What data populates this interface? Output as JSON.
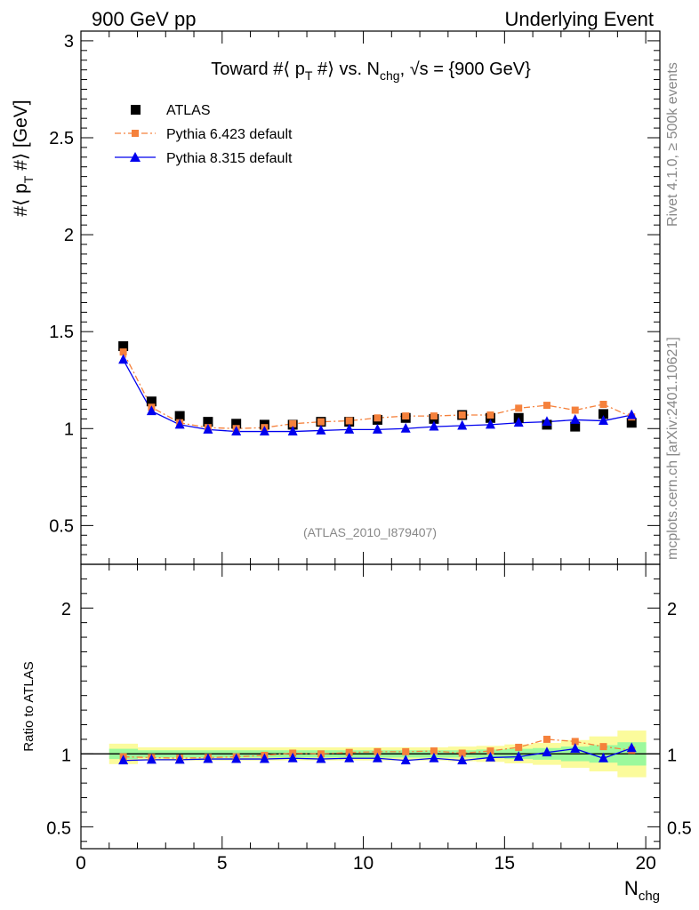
{
  "header": {
    "left": "900 GeV pp",
    "right": "Underlying Event"
  },
  "side": {
    "rivet": "Rivet 4.1.0, ≥ 500k events",
    "mcplots": "mcplots.cern.ch [arXiv:2401.10621]"
  },
  "colors": {
    "atlas": "#000000",
    "pythia6": "#f5813c",
    "pythia8": "#0000ee",
    "band_inner": "#9cf99c",
    "band_outer": "#fbfb9c"
  },
  "chart_data": [
    {
      "type": "scatter",
      "title_parts": [
        "Toward #⟨ p",
        "T",
        " #⟩ vs. N",
        "chg",
        ", √s = {900 GeV}"
      ],
      "ylabel_parts": [
        "#⟨ p",
        "T",
        " #⟩ [GeV]"
      ],
      "analysis_label": "(ATLAS_2010_I879407)",
      "xlim": [
        0,
        20.5
      ],
      "ylim": [
        0.3,
        3.05
      ],
      "yticks": [
        0.5,
        1,
        1.5,
        2,
        2.5,
        3
      ],
      "ytick_labels": [
        "0.5",
        "1",
        "1.5",
        "2",
        "2.5",
        "3"
      ],
      "x": [
        1.5,
        2.5,
        3.5,
        4.5,
        5.5,
        6.5,
        7.5,
        8.5,
        9.5,
        10.5,
        11.5,
        12.5,
        13.5,
        14.5,
        15.5,
        16.5,
        17.5,
        18.5,
        19.5
      ],
      "series": [
        {
          "name": "ATLAS",
          "style": "data",
          "values": [
            1.425,
            1.14,
            1.065,
            1.035,
            1.025,
            1.02,
            1.02,
            1.035,
            1.035,
            1.045,
            1.055,
            1.05,
            1.07,
            1.055,
            1.055,
            1.02,
            1.01,
            1.075,
            1.03
          ]
        },
        {
          "name": "Pythia 6.423 default",
          "style": "dashdot",
          "values": [
            1.395,
            1.11,
            1.03,
            1.005,
            1.0,
            1.005,
            1.025,
            1.035,
            1.04,
            1.055,
            1.065,
            1.065,
            1.07,
            1.07,
            1.105,
            1.12,
            1.095,
            1.125,
            1.06
          ]
        },
        {
          "name": "Pythia 8.315 default",
          "style": "solid",
          "values": [
            1.355,
            1.09,
            1.02,
            0.995,
            0.985,
            0.985,
            0.985,
            0.99,
            0.995,
            0.995,
            1.0,
            1.01,
            1.015,
            1.02,
            1.03,
            1.035,
            1.045,
            1.04,
            1.07
          ]
        }
      ],
      "legend": [
        "ATLAS",
        "Pythia 6.423 default",
        "Pythia 8.315 default"
      ]
    },
    {
      "type": "scatter",
      "ylabel": "Ratio to ATLAS",
      "xlabel_parts": [
        "N",
        "chg"
      ],
      "xlim": [
        0,
        20.5
      ],
      "ylim": [
        0.35,
        2.3
      ],
      "xticks": [
        0,
        5,
        10,
        15,
        20
      ],
      "xtick_labels": [
        "0",
        "5",
        "10",
        "15",
        "20"
      ],
      "yticks": [
        0.5,
        1,
        2
      ],
      "ytick_labels": [
        "0.5",
        "1",
        "2"
      ],
      "x": [
        1.5,
        2.5,
        3.5,
        4.5,
        5.5,
        6.5,
        7.5,
        8.5,
        9.5,
        10.5,
        11.5,
        12.5,
        13.5,
        14.5,
        15.5,
        16.5,
        17.5,
        18.5,
        19.5
      ],
      "band_inner": [
        0.035,
        0.025,
        0.025,
        0.025,
        0.025,
        0.025,
        0.025,
        0.025,
        0.025,
        0.025,
        0.025,
        0.025,
        0.025,
        0.03,
        0.035,
        0.04,
        0.05,
        0.06,
        0.08
      ],
      "band_outer": [
        0.07,
        0.045,
        0.045,
        0.045,
        0.045,
        0.045,
        0.045,
        0.045,
        0.045,
        0.045,
        0.045,
        0.045,
        0.05,
        0.055,
        0.065,
        0.075,
        0.095,
        0.12,
        0.16
      ],
      "series": [
        {
          "name": "Pythia 6.423 default",
          "style": "dashdot",
          "values": [
            0.98,
            0.975,
            0.97,
            0.975,
            0.98,
            0.99,
            1.005,
            1.0,
            1.01,
            1.015,
            1.015,
            1.02,
            1.005,
            1.02,
            1.045,
            1.1,
            1.085,
            1.05,
            1.025
          ]
        },
        {
          "name": "Pythia 8.315 default",
          "style": "solid",
          "values": [
            0.955,
            0.96,
            0.96,
            0.965,
            0.965,
            0.965,
            0.97,
            0.965,
            0.97,
            0.97,
            0.955,
            0.97,
            0.955,
            0.975,
            0.98,
            1.01,
            1.035,
            0.97,
            1.04
          ]
        }
      ]
    }
  ]
}
